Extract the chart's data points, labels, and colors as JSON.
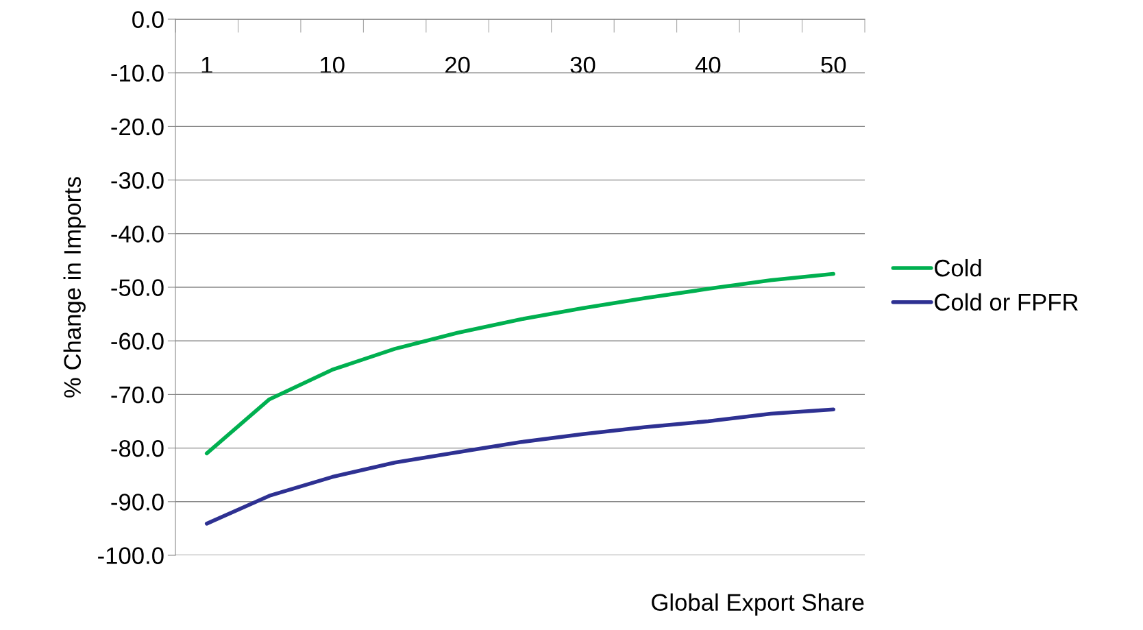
{
  "chart_data": {
    "type": "line",
    "xlabel": "Global Export Share",
    "ylabel": "% Change in Imports",
    "categories": [
      "1",
      null,
      "10",
      null,
      "20",
      null,
      "30",
      null,
      "40",
      null,
      "50"
    ],
    "series": [
      {
        "name": "Cold",
        "color": "#00b050",
        "values": [
          -81.0,
          -70.9,
          -65.4,
          -61.5,
          -58.5,
          -56.0,
          -53.9,
          -52.0,
          -50.3,
          -48.7,
          -47.5
        ]
      },
      {
        "name": "Cold or FPFR",
        "color": "#2e3192",
        "values": [
          -94.1,
          -88.9,
          -85.4,
          -82.7,
          -80.8,
          -78.9,
          -77.4,
          -76.1,
          -75.0,
          -73.6,
          -72.8
        ]
      }
    ],
    "ylim": [
      -100,
      0
    ],
    "yticks": [
      {
        "value": 0,
        "label": "0.0"
      },
      {
        "value": -10,
        "label": "-10.0"
      },
      {
        "value": -20,
        "label": "-20.0"
      },
      {
        "value": -30,
        "label": "-30.0"
      },
      {
        "value": -40,
        "label": "-40.0"
      },
      {
        "value": -50,
        "label": "-50.0"
      },
      {
        "value": -60,
        "label": "-60.0"
      },
      {
        "value": -70,
        "label": "-70.0"
      },
      {
        "value": -80,
        "label": "-80.0"
      },
      {
        "value": -90,
        "label": "-90.0"
      },
      {
        "value": -100,
        "label": "-100.0"
      }
    ],
    "grid": "y",
    "legend": "right",
    "marker": "none",
    "line_style": "solid"
  }
}
